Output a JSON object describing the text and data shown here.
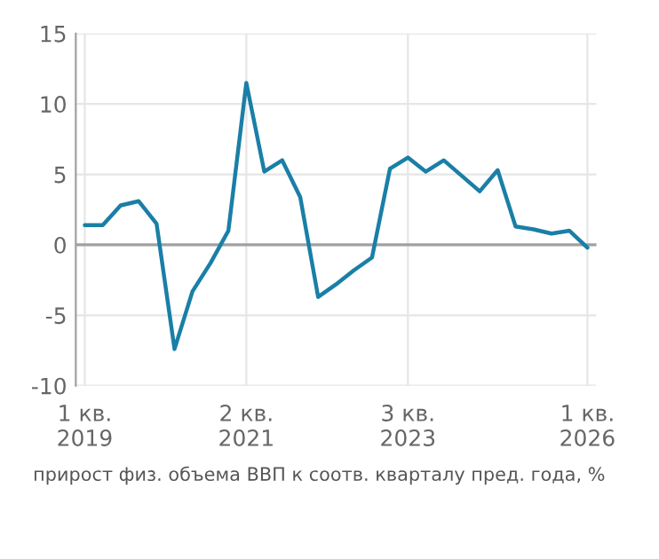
{
  "chart_data": {
    "type": "line",
    "categories": [
      "1 кв.\n2019",
      null,
      null,
      null,
      null,
      null,
      null,
      null,
      null,
      "2 кв.\n2021",
      null,
      null,
      null,
      null,
      null,
      null,
      null,
      null,
      "3 кв.\n2023",
      null,
      null,
      null,
      null,
      null,
      null,
      null,
      null,
      null,
      "1 кв.\n2026"
    ],
    "series": [
      {
        "color": "#1a7fa6",
        "values": [
          1.4,
          1.4,
          2.8,
          3.1,
          1.5,
          -7.4,
          -3.3,
          -1.3,
          1.0,
          11.5,
          5.2,
          6.0,
          3.4,
          -3.7,
          -2.8,
          -1.8,
          -0.9,
          5.4,
          6.2,
          5.2,
          6.0,
          4.9,
          3.8,
          5.3,
          1.3,
          1.1,
          0.8,
          1.0,
          -0.2
        ]
      }
    ],
    "ylim": [
      -10,
      15
    ],
    "yticks": [
      -10,
      -5,
      0,
      5,
      10,
      15
    ],
    "ref_lines": [
      {
        "axis": "y",
        "value": 0,
        "color": "#a0a0a0"
      }
    ],
    "grid": true,
    "legend": false,
    "marker": "none",
    "line_style": "solid",
    "annotations": [
      "прирост физ. объема ВВП к соотв. кварталу пред. года, %"
    ]
  }
}
